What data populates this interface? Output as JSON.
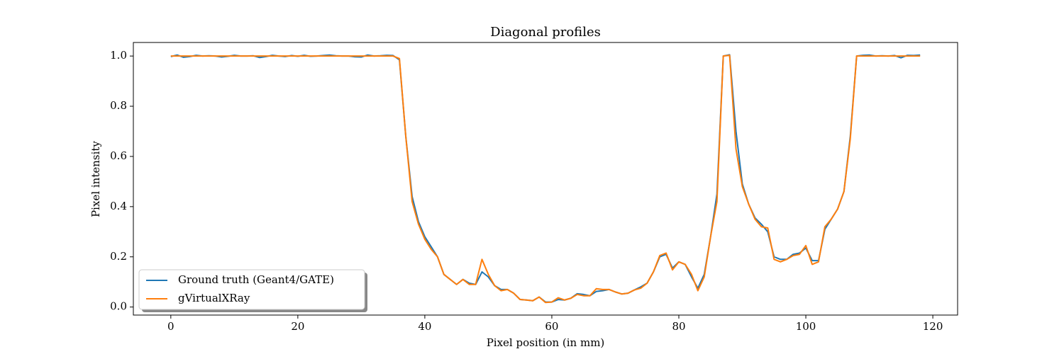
{
  "chart_data": {
    "type": "line",
    "title": "Diagonal profiles",
    "x_label": "Pixel position (in mm)",
    "y_label": "Pixel intensity",
    "x": [
      0,
      1,
      2,
      3,
      4,
      5,
      6,
      7,
      8,
      9,
      10,
      11,
      12,
      13,
      14,
      15,
      16,
      17,
      18,
      19,
      20,
      21,
      22,
      23,
      24,
      25,
      26,
      27,
      28,
      29,
      30,
      31,
      32,
      33,
      34,
      35,
      36,
      37,
      38,
      39,
      40,
      41,
      42,
      43,
      44,
      45,
      46,
      47,
      48,
      49,
      50,
      51,
      52,
      53,
      54,
      55,
      56,
      57,
      58,
      59,
      60,
      61,
      62,
      63,
      64,
      65,
      66,
      67,
      68,
      69,
      70,
      71,
      72,
      73,
      74,
      75,
      76,
      77,
      78,
      79,
      80,
      81,
      82,
      83,
      84,
      85,
      86,
      87,
      88,
      89,
      90,
      91,
      92,
      93,
      94,
      95,
      96,
      97,
      98,
      99,
      100,
      101,
      102,
      103,
      104,
      105,
      106,
      107,
      108,
      109,
      110,
      111,
      112,
      113,
      114,
      115,
      116,
      117,
      118
    ],
    "series": [
      {
        "name": "Ground truth (Geant4/GATE)",
        "color": "#1f77b4",
        "values": [
          0.998,
          1.004,
          0.995,
          0.998,
          1.003,
          1.0,
          1.001,
          1.0,
          0.996,
          0.999,
          1.003,
          1.0,
          1.0,
          1.001,
          0.994,
          0.998,
          1.003,
          1.0,
          0.998,
          1.002,
          0.999,
          1.003,
          0.999,
          1.0,
          1.002,
          1.004,
          1.001,
          1.0,
          1.0,
          0.997,
          0.996,
          1.004,
          1.0,
          1.001,
          1.003,
          1.002,
          0.985,
          0.68,
          0.44,
          0.34,
          0.28,
          0.24,
          0.2,
          0.13,
          0.11,
          0.09,
          0.11,
          0.095,
          0.09,
          0.14,
          0.12,
          0.085,
          0.07,
          0.07,
          0.055,
          0.03,
          0.028,
          0.025,
          0.04,
          0.02,
          0.02,
          0.03,
          0.028,
          0.035,
          0.053,
          0.05,
          0.045,
          0.062,
          0.065,
          0.07,
          0.06,
          0.052,
          0.055,
          0.068,
          0.08,
          0.095,
          0.14,
          0.2,
          0.21,
          0.155,
          0.18,
          0.17,
          0.12,
          0.075,
          0.13,
          0.28,
          0.45,
          1.0,
          1.005,
          0.7,
          0.49,
          0.41,
          0.355,
          0.33,
          0.3,
          0.2,
          0.19,
          0.19,
          0.21,
          0.215,
          0.235,
          0.185,
          0.185,
          0.31,
          0.35,
          0.39,
          0.46,
          0.68,
          1.0,
          1.003,
          1.004,
          1.0,
          1.001,
          1.0,
          1.002,
          0.993,
          1.003,
          1.002,
          1.004
        ]
      },
      {
        "name": "gVirtualXRay",
        "color": "#ff7f0e",
        "values": [
          1.0,
          1.0,
          1.0,
          1.0,
          1.0,
          1.0,
          1.0,
          1.0,
          1.0,
          1.0,
          1.0,
          1.0,
          1.0,
          1.0,
          1.0,
          1.0,
          1.0,
          1.0,
          1.0,
          1.0,
          1.0,
          1.0,
          1.0,
          1.0,
          1.0,
          1.0,
          1.0,
          1.0,
          1.0,
          1.0,
          1.0,
          1.0,
          1.0,
          1.0,
          1.0,
          1.0,
          0.99,
          0.68,
          0.42,
          0.33,
          0.27,
          0.23,
          0.2,
          0.13,
          0.11,
          0.09,
          0.11,
          0.09,
          0.09,
          0.19,
          0.13,
          0.085,
          0.065,
          0.07,
          0.055,
          0.03,
          0.028,
          0.025,
          0.04,
          0.018,
          0.02,
          0.037,
          0.028,
          0.035,
          0.05,
          0.045,
          0.045,
          0.073,
          0.07,
          0.07,
          0.06,
          0.052,
          0.055,
          0.068,
          0.075,
          0.095,
          0.14,
          0.205,
          0.215,
          0.148,
          0.18,
          0.17,
          0.13,
          0.065,
          0.12,
          0.28,
          0.42,
          1.0,
          1.003,
          0.63,
          0.48,
          0.41,
          0.35,
          0.32,
          0.315,
          0.19,
          0.18,
          0.19,
          0.205,
          0.21,
          0.245,
          0.17,
          0.18,
          0.32,
          0.35,
          0.39,
          0.46,
          0.67,
          1.0,
          1.0,
          1.0,
          1.0,
          1.0,
          1.0,
          1.0,
          1.0,
          1.0,
          1.0,
          1.0
        ]
      }
    ],
    "xlim": [
      -5.9,
      123.9
    ],
    "ylim": [
      -0.032,
      1.054
    ],
    "xticks": [
      0,
      20,
      40,
      60,
      80,
      100,
      120
    ],
    "yticks": [
      {
        "value": 0,
        "label": "0.0"
      },
      0.2,
      0.4,
      0.6,
      0.8,
      {
        "value": 1,
        "label": "1.0"
      }
    ],
    "grid": false,
    "legend": "lower left"
  }
}
